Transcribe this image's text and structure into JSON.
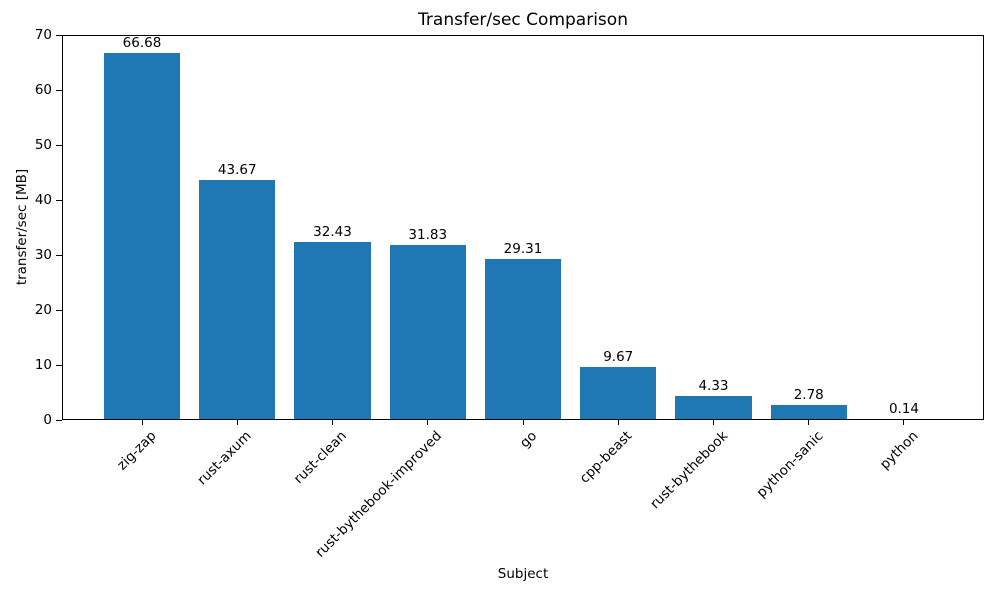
{
  "title": "Transfer/sec Comparison",
  "colors": {
    "bar": "#1f77b4",
    "text": "#000000",
    "background": "#ffffff",
    "spine": "#000000"
  },
  "chart_data": {
    "type": "bar",
    "title": "Transfer/sec Comparison",
    "xlabel": "Subject",
    "ylabel": "transfer/sec [MB]",
    "categories": [
      "zig-zap",
      "rust-axum",
      "rust-clean",
      "rust-bythebook-improved",
      "go",
      "cpp-beast",
      "rust-bythebook",
      "python-sanic",
      "python"
    ],
    "values": [
      66.68,
      43.67,
      32.43,
      31.83,
      29.31,
      9.67,
      4.33,
      2.78,
      0.14
    ],
    "bar_labels": [
      "66.68",
      "43.67",
      "32.43",
      "31.83",
      "29.31",
      "9.67",
      "4.33",
      "2.78",
      "0.14"
    ],
    "ylim": [
      0,
      70
    ],
    "yticks": [
      0,
      10,
      20,
      30,
      40,
      50,
      60,
      70
    ],
    "bar_color": "#1f77b4",
    "grid": false,
    "legend": null,
    "x_tick_rotation_deg": 45
  }
}
